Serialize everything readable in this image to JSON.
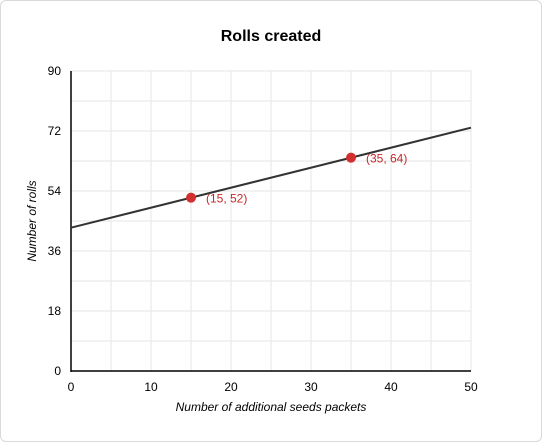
{
  "chart_data": {
    "type": "line",
    "title": "Rolls created",
    "xlabel": "Number of additional seeds packets",
    "ylabel": "Number of rolls",
    "xlim": [
      0,
      50
    ],
    "ylim": [
      0,
      90
    ],
    "x_ticks": [
      0,
      10,
      20,
      30,
      40,
      50
    ],
    "y_ticks": [
      0,
      18,
      36,
      54,
      72,
      90
    ],
    "grid": true,
    "line": {
      "slope": 0.6,
      "intercept": 43,
      "color": "#333333"
    },
    "points": [
      {
        "x": 15,
        "y": 52,
        "label": "(15, 52)"
      },
      {
        "x": 35,
        "y": 64,
        "label": "(35, 64)"
      }
    ],
    "point_color": "#d32f2f",
    "label_color": "#c62828"
  }
}
